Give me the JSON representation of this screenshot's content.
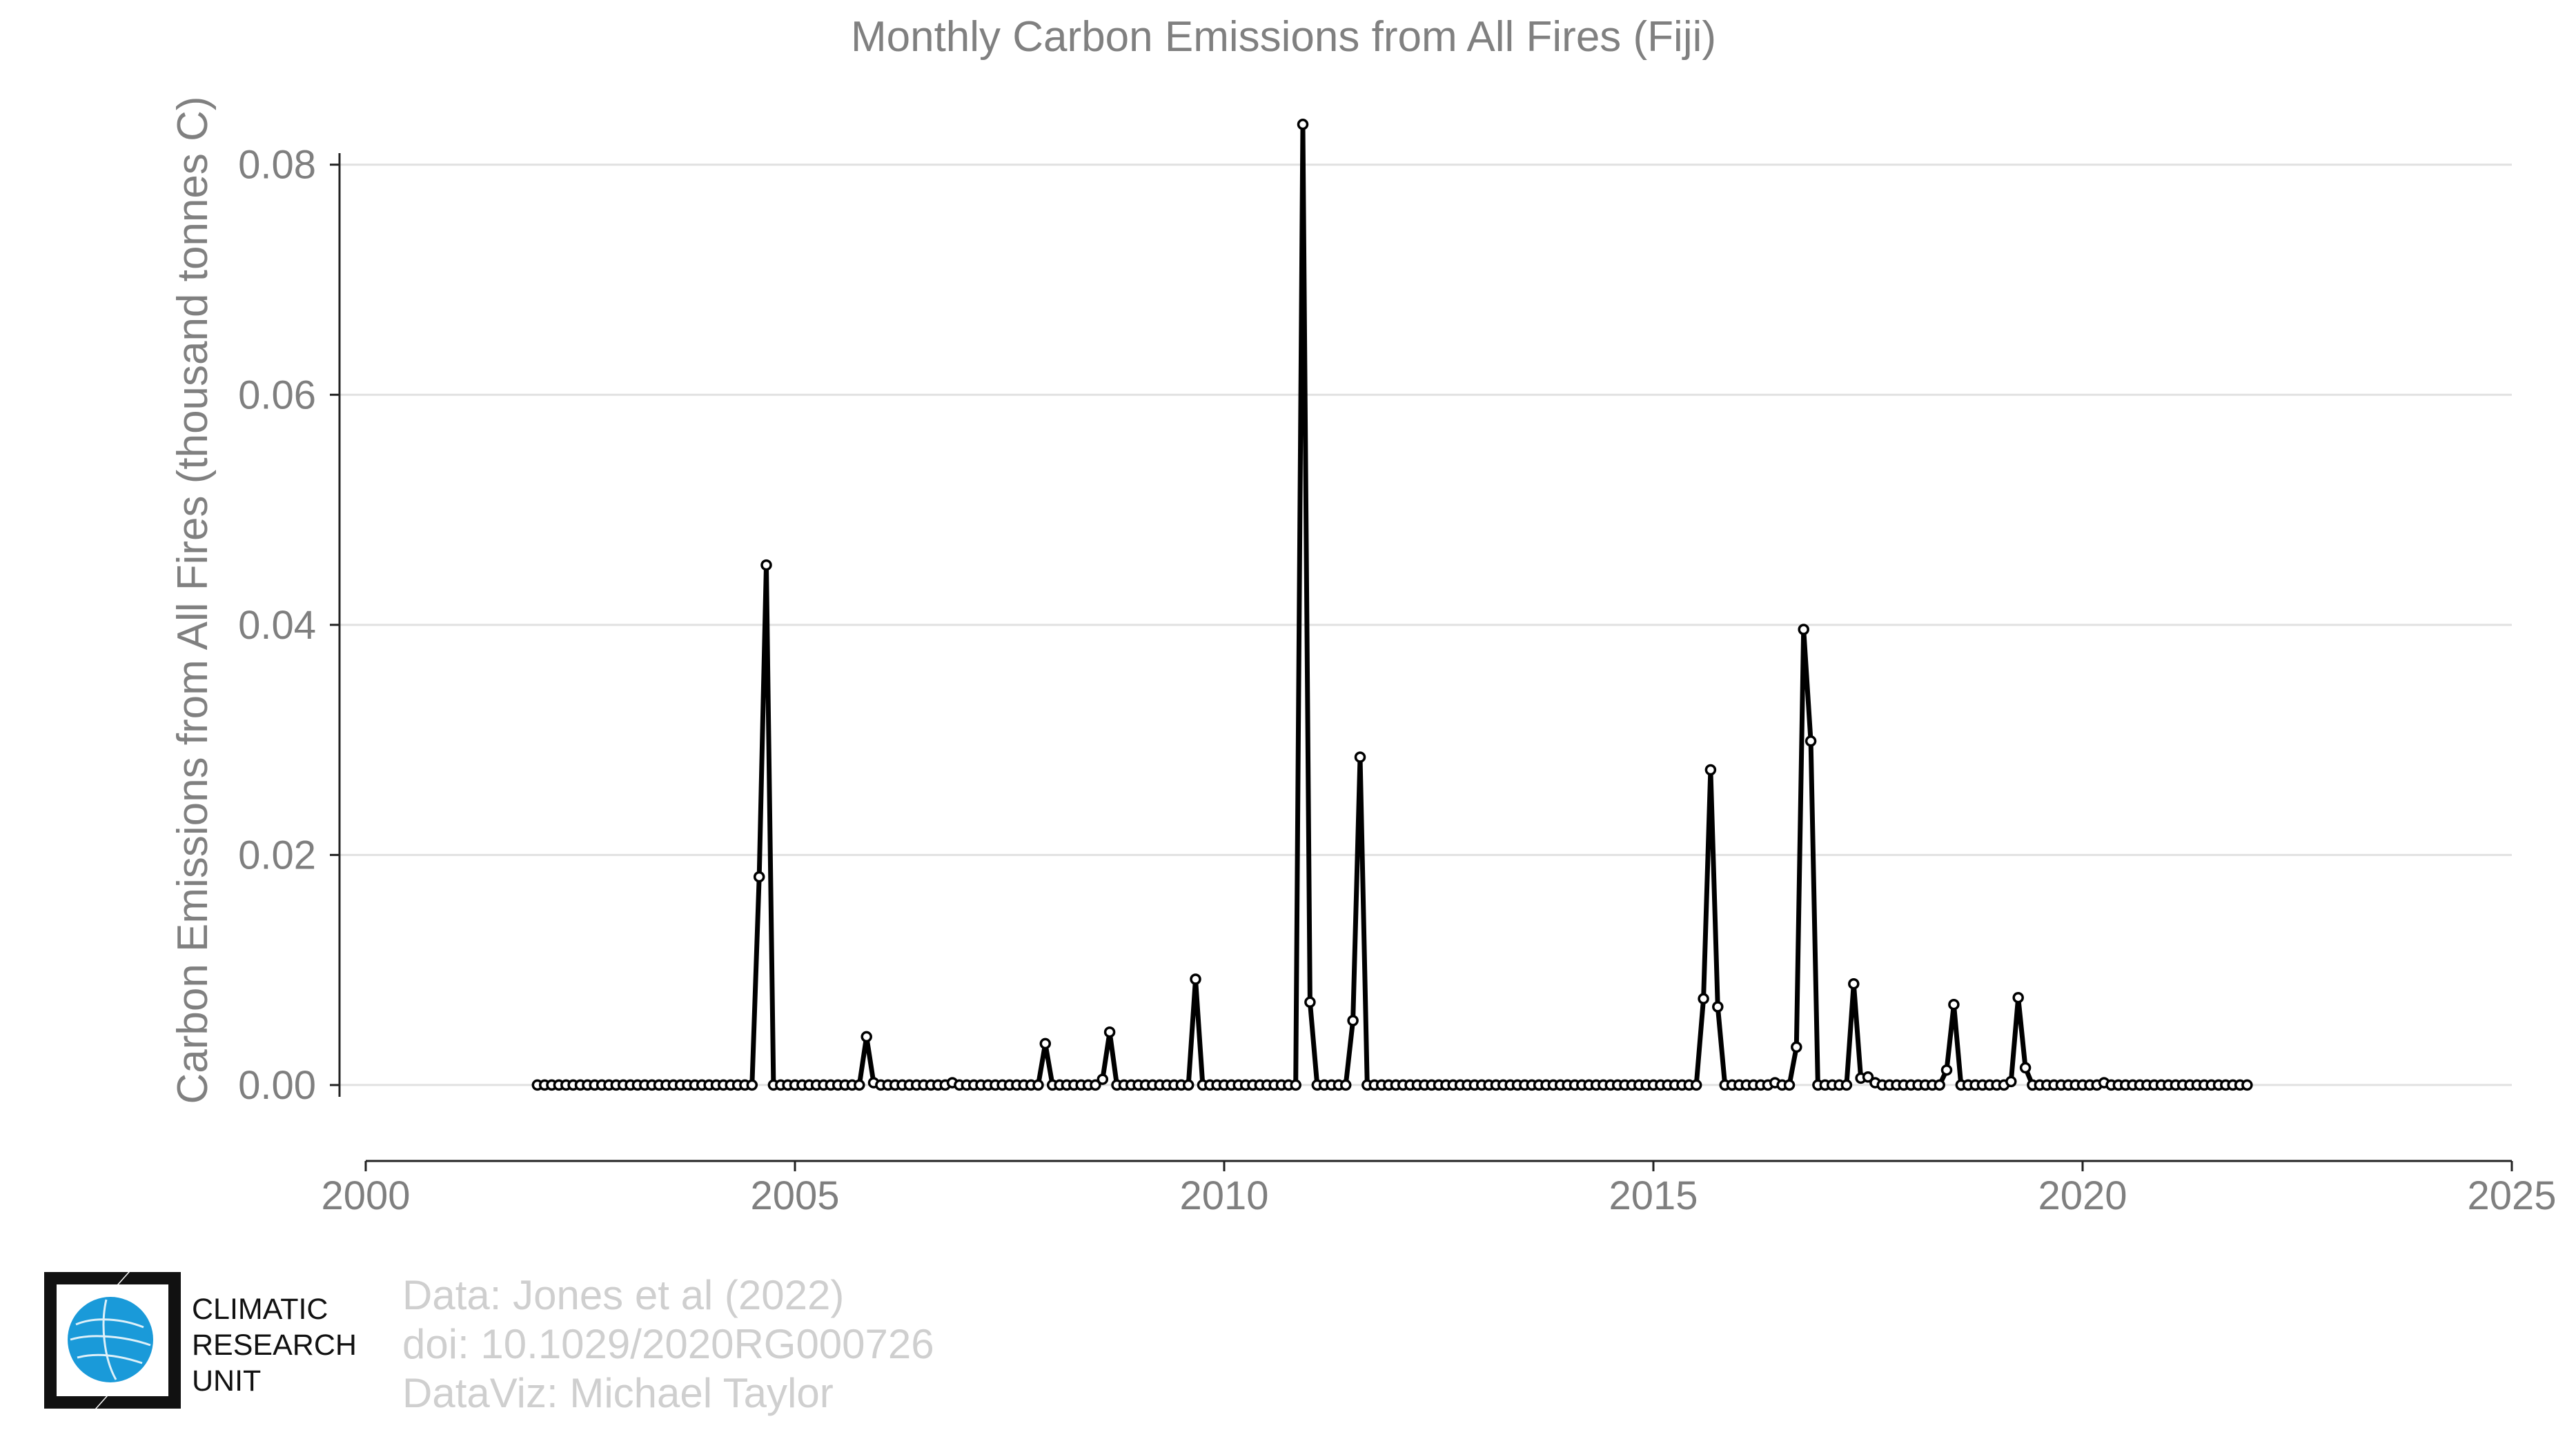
{
  "chart_data": {
    "type": "line",
    "title": "Monthly Carbon Emissions from All Fires (Fiji)",
    "xlabel": "",
    "ylabel": "Carbon Emissions from All Fires (thousand tonnes C)",
    "xlim": [
      2000,
      2025
    ],
    "ylim": [
      -0.0066,
      0.084
    ],
    "xticks": [
      2000,
      2005,
      2010,
      2015,
      2020,
      2025
    ],
    "yticks": [
      0.0,
      0.02,
      0.04,
      0.06,
      0.08
    ],
    "ytick_labels": [
      "0.00",
      "0.02",
      "0.04",
      "0.06",
      "0.08"
    ],
    "grid": "horizontal",
    "legend": "none",
    "line_color": "#000000",
    "marker": "open-circle",
    "start": "2002-01",
    "frequency": "monthly",
    "series": [
      {
        "values": [
          0,
          0,
          0,
          0,
          0,
          0,
          0,
          0,
          0,
          0,
          0,
          0,
          0,
          0,
          0,
          0,
          0,
          0,
          0,
          0,
          0,
          0,
          0,
          0,
          0,
          0,
          0,
          0,
          0,
          0,
          0,
          0.0181,
          0.0452,
          0,
          0,
          0,
          0,
          0,
          0,
          0,
          0,
          0,
          0,
          0,
          0,
          0,
          0.0042,
          0.0002,
          0,
          0,
          0,
          0,
          0,
          0,
          0,
          0,
          0,
          0,
          0.0002,
          0,
          0,
          0,
          0,
          0,
          0,
          0,
          0,
          0,
          0,
          0,
          0,
          0.0036,
          0,
          0,
          0,
          0,
          0,
          0,
          0,
          0.0005,
          0.0046,
          0,
          0,
          0,
          0,
          0,
          0,
          0,
          0,
          0,
          0,
          0,
          0.0092,
          0,
          0,
          0,
          0,
          0,
          0,
          0,
          0,
          0,
          0,
          0,
          0,
          0,
          0,
          0.0835,
          0.0072,
          0,
          0,
          0,
          0,
          0,
          0.0056,
          0.0285,
          0,
          0,
          0,
          0,
          0,
          0,
          0,
          0,
          0,
          0,
          0,
          0,
          0,
          0,
          0,
          0,
          0,
          0,
          0,
          0,
          0,
          0,
          0,
          0,
          0,
          0,
          0,
          0,
          0,
          0,
          0,
          0,
          0,
          0,
          0,
          0,
          0,
          0,
          0,
          0,
          0,
          0,
          0,
          0,
          0,
          0,
          0,
          0.0075,
          0.0274,
          0.0068,
          0,
          0,
          0,
          0,
          0,
          0,
          0,
          0.0002,
          0,
          0,
          0.0033,
          0.0396,
          0.0299,
          0,
          0,
          0,
          0,
          0,
          0.0088,
          0.0006,
          0.0007,
          0.0002,
          0,
          0,
          0,
          0,
          0,
          0,
          0,
          0,
          0,
          0.0013,
          0.007,
          0,
          0,
          0,
          0,
          0,
          0,
          0,
          0.0003,
          0.0076,
          0.0015,
          0,
          0,
          0,
          0,
          0,
          0,
          0,
          0,
          0,
          0,
          0.0002,
          0,
          0,
          0,
          0,
          0,
          0,
          0,
          0,
          0,
          0,
          0,
          0,
          0,
          0,
          0,
          0,
          0,
          0,
          0,
          0
        ]
      }
    ]
  },
  "credits": {
    "line1": "Data: Jones et al (2022)",
    "line2": "doi: 10.1029/2020RG000726",
    "line3": "DataViz: Michael Taylor"
  },
  "logo": {
    "line1": "CLIMATIC",
    "line2": "RESEARCH",
    "line3": "UNIT",
    "globe_color": "#1a9ad9"
  }
}
